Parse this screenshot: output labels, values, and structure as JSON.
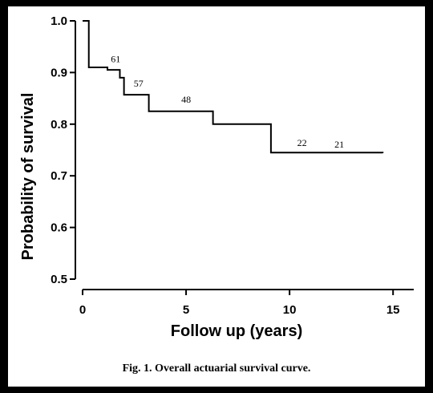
{
  "chart_data": {
    "type": "line",
    "title": "",
    "xlabel": "Follow up (years)",
    "ylabel": "Probability of survival",
    "xlim": [
      0,
      16
    ],
    "ylim": [
      0.5,
      1.0
    ],
    "xticks": [
      0,
      5,
      10,
      15
    ],
    "yticks": [
      0.5,
      0.6,
      0.7,
      0.8,
      0.9,
      1.0
    ],
    "xtick_labels": [
      "0",
      "5",
      "10",
      "15"
    ],
    "ytick_labels": [
      "0.5",
      "0.6",
      "0.7",
      "0.8",
      "0.9",
      "1.0"
    ],
    "step": true,
    "series": [
      {
        "x": [
          0,
          0.2,
          0.3,
          0.8,
          1.2,
          1.8,
          2.0,
          3.0,
          3.2,
          6.3,
          9.1,
          14.5
        ],
        "y": [
          1.0,
          1.0,
          0.91,
          0.91,
          0.905,
          0.89,
          0.857,
          0.857,
          0.825,
          0.8,
          0.745,
          0.744
        ]
      }
    ],
    "annotations": [
      {
        "text": "61",
        "x": 1.6,
        "y": 0.92
      },
      {
        "text": "57",
        "x": 2.7,
        "y": 0.873
      },
      {
        "text": "48",
        "x": 5.0,
        "y": 0.842
      },
      {
        "text": "22",
        "x": 10.6,
        "y": 0.758
      },
      {
        "text": "21",
        "x": 12.4,
        "y": 0.755
      }
    ],
    "grid": false,
    "caption": "Fig. 1. Overall actuarial survival curve."
  }
}
